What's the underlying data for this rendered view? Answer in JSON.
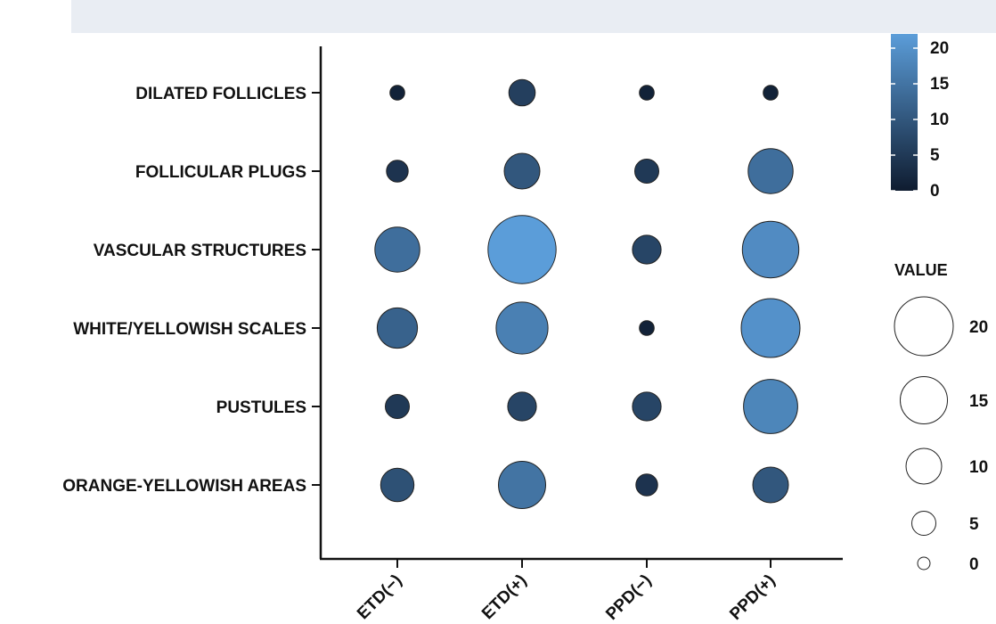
{
  "chart_data": {
    "type": "bubble",
    "title": "",
    "xlabel": "",
    "ylabel": "",
    "categories": [
      "ETD(−)",
      "ETD(+)",
      "PPD(−)",
      "PPD(+)"
    ],
    "rows": [
      "DILATED FOLLICLES",
      "FOLLICULAR PLUGS",
      "VASCULAR STRUCTURES",
      "WHITE/YELLOWISH SCALES",
      "PUSTULES",
      "ORANGE-YELLOWISH AREAS"
    ],
    "values": [
      [
        1,
        6,
        1,
        1
      ],
      [
        4,
        10,
        5,
        14
      ],
      [
        14,
        24,
        7,
        19
      ],
      [
        12,
        17,
        1,
        20
      ],
      [
        5,
        7,
        7,
        18
      ],
      [
        9,
        15,
        4,
        10
      ]
    ],
    "color_scale": {
      "ticks": [
        "0",
        "5",
        "10",
        "15",
        "20"
      ],
      "min": 0,
      "max": 22,
      "low_color": "#0f1c30",
      "high_color": "#5b9dd9"
    },
    "size_legend": {
      "title": "VALUE",
      "values": [
        20,
        15,
        10,
        5,
        0
      ],
      "labels": [
        "20",
        "15",
        "10",
        "5",
        "0"
      ]
    }
  }
}
